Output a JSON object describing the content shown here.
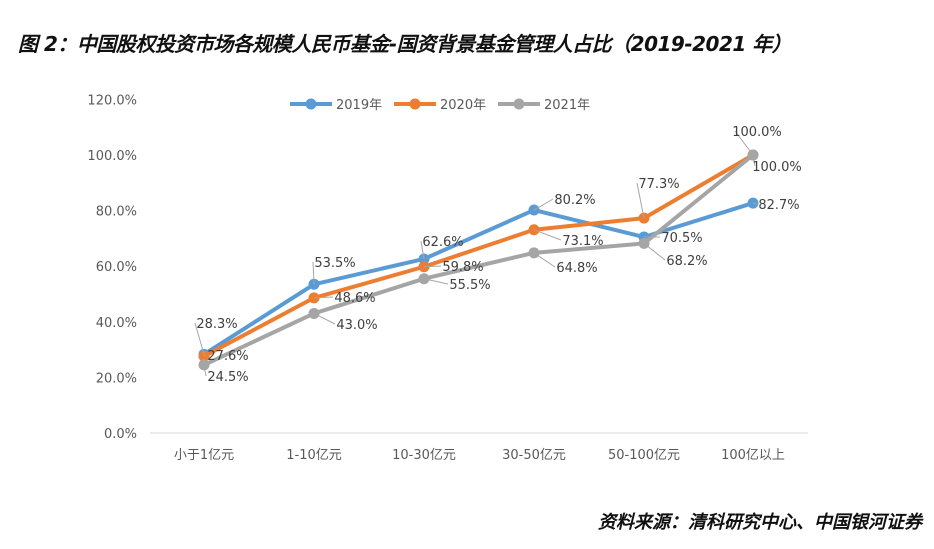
{
  "title": "图 2：中国股权投资市场各规模人民币基金-国资背景基金管理人占比（2019-2021 年）",
  "source": "资料来源：清科研究中心、中国银河证券",
  "chart_data": {
    "type": "line",
    "title": "",
    "xlabel": "",
    "ylabel": "",
    "categories": [
      "小于1亿元",
      "1-10亿元",
      "10-30亿元",
      "30-50亿元",
      "50-100亿元",
      "100亿以上"
    ],
    "yticks": [
      "0.0%",
      "20.0%",
      "40.0%",
      "60.0%",
      "80.0%",
      "100.0%",
      "120.0%"
    ],
    "ylim": [
      0,
      120
    ],
    "grid": false,
    "legend": "top",
    "series": [
      {
        "name": "2019年",
        "color": "#5B9BD5",
        "values": [
          28.3,
          53.5,
          62.6,
          80.2,
          70.5,
          82.7
        ],
        "labels": [
          "28.3%",
          "53.5%",
          "62.6%",
          "80.2%",
          "70.5%",
          "82.7%"
        ]
      },
      {
        "name": "2020年",
        "color": "#ED7D31",
        "values": [
          27.6,
          48.6,
          59.8,
          73.1,
          77.3,
          100.0
        ],
        "labels": [
          "27.6%",
          "48.6%",
          "59.8%",
          "73.1%",
          "77.3%",
          "100.0%"
        ]
      },
      {
        "name": "2021年",
        "color": "#A5A5A5",
        "values": [
          24.5,
          43.0,
          55.5,
          64.8,
          68.2,
          100.0
        ],
        "labels": [
          "24.5%",
          "43.0%",
          "55.5%",
          "64.8%",
          "68.2%",
          "100.0%"
        ]
      }
    ]
  }
}
